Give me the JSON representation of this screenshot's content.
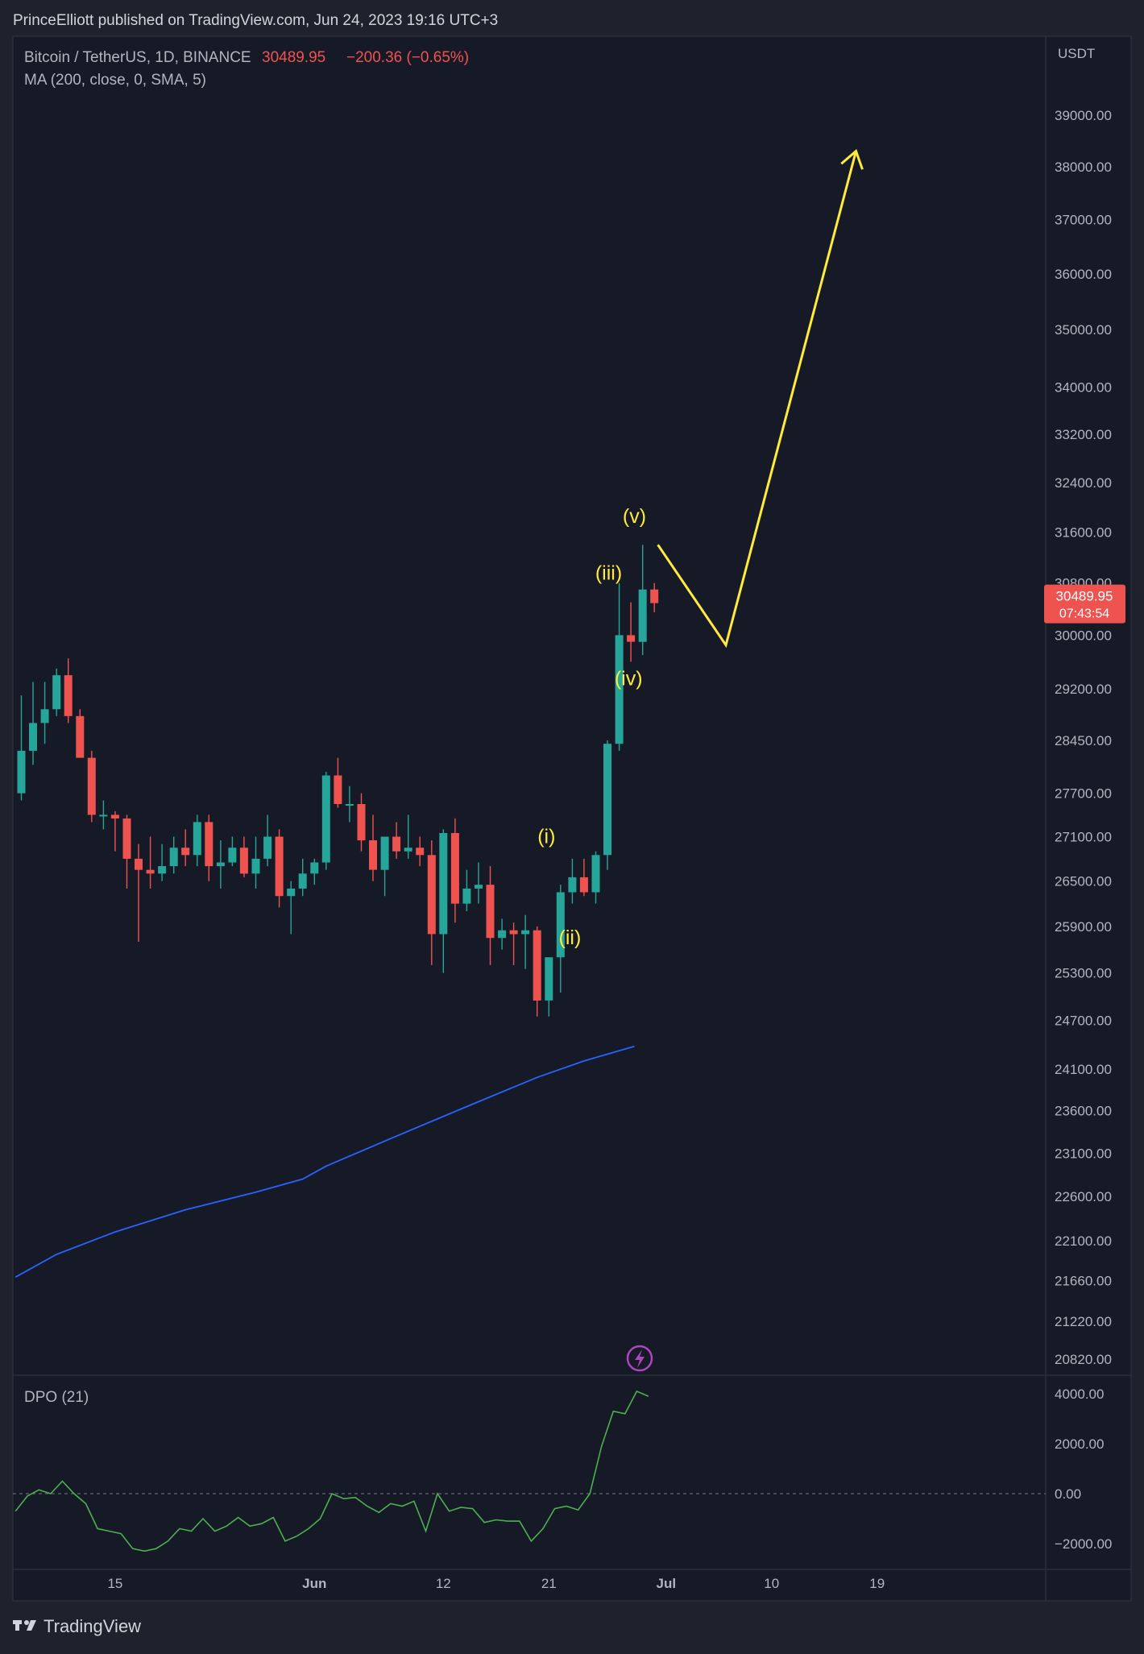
{
  "header": {
    "published_by": "PrinceElliott published on TradingView.com, Jun 24, 2023 19:16 UTC+3"
  },
  "legend": {
    "symbol": "Bitcoin / TetherUS, 1D, BINANCE",
    "price": "30489.95",
    "change": "−200.36 (−0.65%)",
    "ma_label": "MA (200, close, 0, SMA, 5)"
  },
  "price_scale": {
    "currency": "USDT",
    "current_price": "30489.95",
    "countdown": "07:43:54"
  },
  "dpo": {
    "label": "DPO (21)"
  },
  "footer": {
    "brand": "TradingView"
  },
  "colors": {
    "bg": "#161a26",
    "frame": "#1f222c",
    "up": "#26a69a",
    "down": "#ef5350",
    "ma": "#2962ff",
    "dpo": "#4caf50",
    "wave": "#ffeb3b",
    "event": "#ab47bc"
  },
  "chart_data": {
    "type": "candlestick",
    "symbol": "Bitcoin / TetherUS",
    "interval": "1D",
    "exchange": "BINANCE",
    "x_ticks": [
      {
        "label": "15",
        "index": 8,
        "bold": false
      },
      {
        "label": "Jun",
        "index": 25,
        "bold": true
      },
      {
        "label": "12",
        "index": 36,
        "bold": false
      },
      {
        "label": "21",
        "index": 45,
        "bold": false
      },
      {
        "label": "Jul",
        "index": 55,
        "bold": true
      },
      {
        "label": "10",
        "index": 64,
        "bold": false
      },
      {
        "label": "19",
        "index": 73,
        "bold": false
      }
    ],
    "y_ticks": [
      39000,
      38000,
      37000,
      36000,
      35000,
      34000,
      33200,
      32400,
      31600,
      30800,
      30000,
      29200,
      28450,
      27700,
      27100,
      26500,
      25900,
      25300,
      24700,
      24100,
      23600,
      23100,
      22600,
      22100,
      21660,
      21220,
      20820
    ],
    "candles": [
      {
        "o": 27700,
        "h": 29100,
        "l": 27600,
        "c": 28300
      },
      {
        "o": 28300,
        "h": 29300,
        "l": 28100,
        "c": 28700
      },
      {
        "o": 28700,
        "h": 29300,
        "l": 28400,
        "c": 28900
      },
      {
        "o": 28900,
        "h": 29500,
        "l": 28800,
        "c": 29400
      },
      {
        "o": 29400,
        "h": 29650,
        "l": 28700,
        "c": 28800
      },
      {
        "o": 28800,
        "h": 28900,
        "l": 28200,
        "c": 28200
      },
      {
        "o": 28200,
        "h": 28300,
        "l": 27300,
        "c": 27400
      },
      {
        "o": 27400,
        "h": 27600,
        "l": 27200,
        "c": 27400
      },
      {
        "o": 27400,
        "h": 27450,
        "l": 26900,
        "c": 27350
      },
      {
        "o": 27350,
        "h": 27400,
        "l": 26400,
        "c": 26800
      },
      {
        "o": 26800,
        "h": 27000,
        "l": 25700,
        "c": 26650
      },
      {
        "o": 26650,
        "h": 27100,
        "l": 26400,
        "c": 26600
      },
      {
        "o": 26600,
        "h": 27000,
        "l": 26500,
        "c": 26700
      },
      {
        "o": 26700,
        "h": 27100,
        "l": 26600,
        "c": 26950
      },
      {
        "o": 26950,
        "h": 27200,
        "l": 26700,
        "c": 26850
      },
      {
        "o": 26850,
        "h": 27400,
        "l": 26700,
        "c": 27300
      },
      {
        "o": 27300,
        "h": 27400,
        "l": 26500,
        "c": 26700
      },
      {
        "o": 26700,
        "h": 27050,
        "l": 26400,
        "c": 26750
      },
      {
        "o": 26750,
        "h": 27100,
        "l": 26700,
        "c": 26950
      },
      {
        "o": 26950,
        "h": 27100,
        "l": 26550,
        "c": 26600
      },
      {
        "o": 26600,
        "h": 27100,
        "l": 26400,
        "c": 26800
      },
      {
        "o": 26800,
        "h": 27400,
        "l": 26700,
        "c": 27100
      },
      {
        "o": 27100,
        "h": 27200,
        "l": 26150,
        "c": 26300
      },
      {
        "o": 26300,
        "h": 26500,
        "l": 25800,
        "c": 26400
      },
      {
        "o": 26400,
        "h": 26800,
        "l": 26300,
        "c": 26600
      },
      {
        "o": 26600,
        "h": 26800,
        "l": 26450,
        "c": 26750
      },
      {
        "o": 26750,
        "h": 28000,
        "l": 26650,
        "c": 27950
      },
      {
        "o": 27950,
        "h": 28200,
        "l": 27500,
        "c": 27550
      },
      {
        "o": 27550,
        "h": 27800,
        "l": 27300,
        "c": 27550
      },
      {
        "o": 27550,
        "h": 27700,
        "l": 26900,
        "c": 27050
      },
      {
        "o": 27050,
        "h": 27400,
        "l": 26500,
        "c": 26650
      },
      {
        "o": 26650,
        "h": 27100,
        "l": 26300,
        "c": 27100
      },
      {
        "o": 27100,
        "h": 27300,
        "l": 26800,
        "c": 26900
      },
      {
        "o": 26900,
        "h": 27400,
        "l": 26800,
        "c": 26950
      },
      {
        "o": 26950,
        "h": 27100,
        "l": 26700,
        "c": 26850
      },
      {
        "o": 26850,
        "h": 27050,
        "l": 25400,
        "c": 25800
      },
      {
        "o": 25800,
        "h": 27200,
        "l": 25300,
        "c": 27150
      },
      {
        "o": 27150,
        "h": 27350,
        "l": 25950,
        "c": 26200
      },
      {
        "o": 26200,
        "h": 26650,
        "l": 26100,
        "c": 26400
      },
      {
        "o": 26400,
        "h": 26750,
        "l": 26200,
        "c": 26450
      },
      {
        "o": 26450,
        "h": 26700,
        "l": 25400,
        "c": 25750
      },
      {
        "o": 25750,
        "h": 26000,
        "l": 25600,
        "c": 25850
      },
      {
        "o": 25850,
        "h": 25950,
        "l": 25400,
        "c": 25800
      },
      {
        "o": 25800,
        "h": 26050,
        "l": 25350,
        "c": 25850
      },
      {
        "o": 25850,
        "h": 25900,
        "l": 24750,
        "c": 24950
      },
      {
        "o": 24950,
        "h": 25500,
        "l": 24750,
        "c": 25500
      },
      {
        "o": 25500,
        "h": 26450,
        "l": 25050,
        "c": 26350
      },
      {
        "o": 26350,
        "h": 26800,
        "l": 26200,
        "c": 26550
      },
      {
        "o": 26550,
        "h": 26800,
        "l": 26300,
        "c": 26350
      },
      {
        "o": 26350,
        "h": 26900,
        "l": 26200,
        "c": 26850
      },
      {
        "o": 26850,
        "h": 28450,
        "l": 26650,
        "c": 28400
      },
      {
        "o": 28400,
        "h": 30800,
        "l": 28300,
        "c": 30000
      },
      {
        "o": 30000,
        "h": 30500,
        "l": 29600,
        "c": 29900
      },
      {
        "o": 29900,
        "h": 31400,
        "l": 29700,
        "c": 30700
      },
      {
        "o": 30700,
        "h": 30800,
        "l": 30350,
        "c": 30489.95
      }
    ],
    "ma_label": "MA (200, close, 0, SMA, 5)",
    "ma_points": [
      [
        -0.5,
        21700
      ],
      [
        3,
        21950
      ],
      [
        8,
        22200
      ],
      [
        14,
        22450
      ],
      [
        20,
        22650
      ],
      [
        24,
        22800
      ],
      [
        26,
        22950
      ],
      [
        32,
        23300
      ],
      [
        38,
        23650
      ],
      [
        44,
        24000
      ],
      [
        48,
        24200
      ],
      [
        52.3,
        24380
      ]
    ],
    "elliott_labels": [
      {
        "text": "(i)",
        "index": 44.8,
        "price": 27100
      },
      {
        "text": "(ii)",
        "index": 46.8,
        "price": 25750
      },
      {
        "text": "(iii)",
        "index": 50.1,
        "price": 30950
      },
      {
        "text": "(iv)",
        "index": 51.8,
        "price": 29350
      },
      {
        "text": "(v)",
        "index": 52.3,
        "price": 31850
      }
    ],
    "projection": [
      [
        54.3,
        31400
      ],
      [
        60.1,
        29850
      ],
      [
        71.2,
        38300
      ]
    ],
    "dpo": {
      "label": "DPO (21)",
      "y_ticks": [
        4000,
        2000,
        0,
        -2000
      ],
      "values": [
        -700,
        -100,
        150,
        0,
        500,
        0,
        -400,
        -1400,
        -1500,
        -1600,
        -2200,
        -2300,
        -2200,
        -1900,
        -1400,
        -1500,
        -1000,
        -1500,
        -1300,
        -950,
        -1300,
        -1200,
        -950,
        -1900,
        -1700,
        -1400,
        -1000,
        0,
        -200,
        -150,
        -500,
        -750,
        -400,
        -500,
        -300,
        -1500,
        0,
        -700,
        -550,
        -600,
        -1150,
        -1050,
        -1100,
        -1100,
        -1900,
        -1400,
        -600,
        -500,
        -650,
        0,
        1900,
        3300,
        3200,
        4100,
        3900
      ]
    }
  }
}
